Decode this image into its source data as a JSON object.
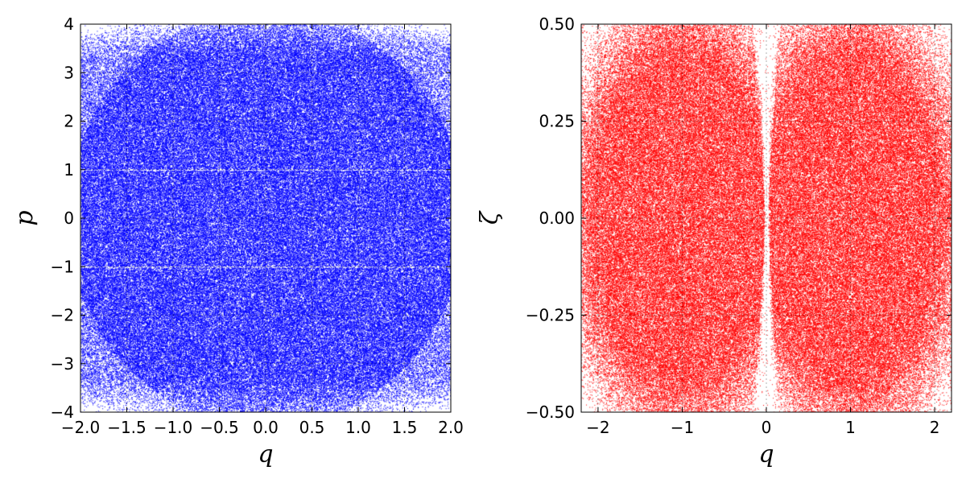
{
  "chart_data": [
    {
      "type": "scatter",
      "panel": "left",
      "xlabel": "q",
      "ylabel": "p",
      "xlim": [
        -2.0,
        2.0
      ],
      "ylim": [
        -4,
        4
      ],
      "xticks": [
        -2.0,
        -1.5,
        -1.0,
        -0.5,
        0.0,
        0.5,
        1.0,
        1.5,
        2.0
      ],
      "xtick_labels": [
        "−2.0",
        "−1.5",
        "−1.0",
        "−0.5",
        "0.0",
        "0.5",
        "1.0",
        "1.5",
        "2.0"
      ],
      "yticks": [
        -4,
        -3,
        -2,
        -1,
        0,
        1,
        2,
        3,
        4
      ],
      "ytick_labels": [
        "−4",
        "−3",
        "−2",
        "−1",
        "0",
        "1",
        "2",
        "3",
        "4"
      ],
      "grid": true,
      "marker_color": "#0000ff",
      "description_of_density": {
        "dense_fill_region": {
          "q": [
            -2.0,
            2.0
          ],
          "p": [
            -3.6,
            3.6
          ]
        },
        "sparse_corners_near": [
          [
            -2.0,
            4.0
          ],
          [
            2.0,
            4.0
          ],
          [
            -2.0,
            -4.0
          ],
          [
            2.0,
            -4.0
          ]
        ],
        "gap_lines_at_p": [
          1.0,
          -1.0
        ]
      }
    },
    {
      "type": "scatter",
      "panel": "right",
      "xlabel": "q",
      "ylabel": "ζ",
      "xlim": [
        -2.2,
        2.2
      ],
      "ylim": [
        -0.5,
        0.5
      ],
      "xticks": [
        -2,
        -1,
        0,
        1,
        2
      ],
      "xtick_labels": [
        "−2",
        "−1",
        "0",
        "1",
        "2"
      ],
      "yticks": [
        -0.5,
        -0.25,
        0.0,
        0.25,
        0.5
      ],
      "ytick_labels": [
        "−0.50",
        "−0.25",
        "0.00",
        "0.25",
        "0.50"
      ],
      "grid": true,
      "marker_color": "#ff0000",
      "description_of_density": {
        "dense_lobes_centered_at_q": [
          -1.0,
          1.0
        ],
        "empty_channel_at_q": 0.0,
        "sparse_near_corners": true
      }
    }
  ]
}
